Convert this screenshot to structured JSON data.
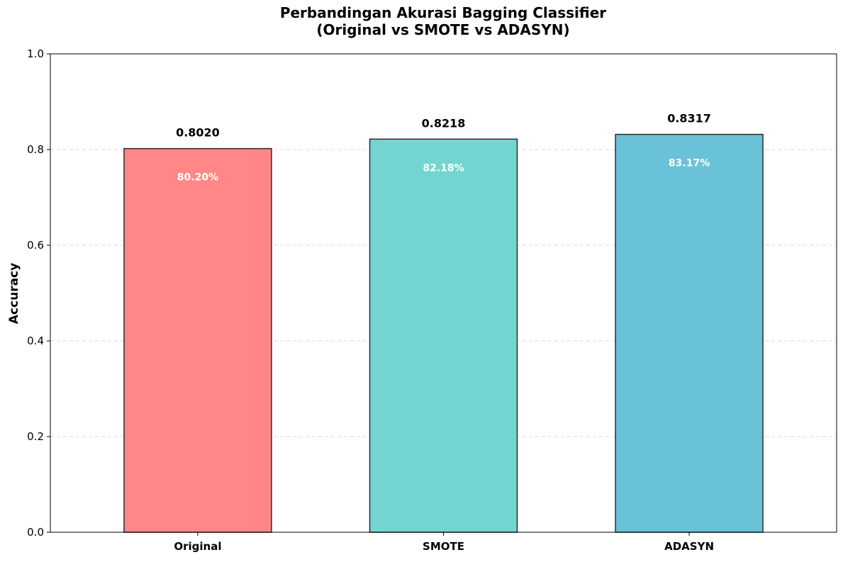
{
  "chart_data": {
    "type": "bar",
    "title": "Perbandingan Akurasi Bagging Classifier",
    "subtitle": "(Original vs SMOTE vs ADASYN)",
    "xlabel": "",
    "ylabel": "Accuracy",
    "categories": [
      "Original",
      "SMOTE",
      "ADASYN"
    ],
    "values": [
      0.802,
      0.8218,
      0.8317
    ],
    "value_labels": [
      "0.8020",
      "0.8218",
      "0.8317"
    ],
    "percent_labels": [
      "80.20%",
      "82.18%",
      "83.17%"
    ],
    "colors": [
      "#ff8787",
      "#74d5d0",
      "#6ac2d8"
    ],
    "edge_color": "#2b2b2b",
    "ylim": [
      0,
      1.0
    ],
    "yticks": [
      0.0,
      0.2,
      0.4,
      0.6,
      0.8,
      1.0
    ],
    "ytick_labels": [
      "0.0",
      "0.2",
      "0.4",
      "0.6",
      "0.8",
      "1.0"
    ],
    "grid": true,
    "grid_axis": "y",
    "legend": false
  }
}
